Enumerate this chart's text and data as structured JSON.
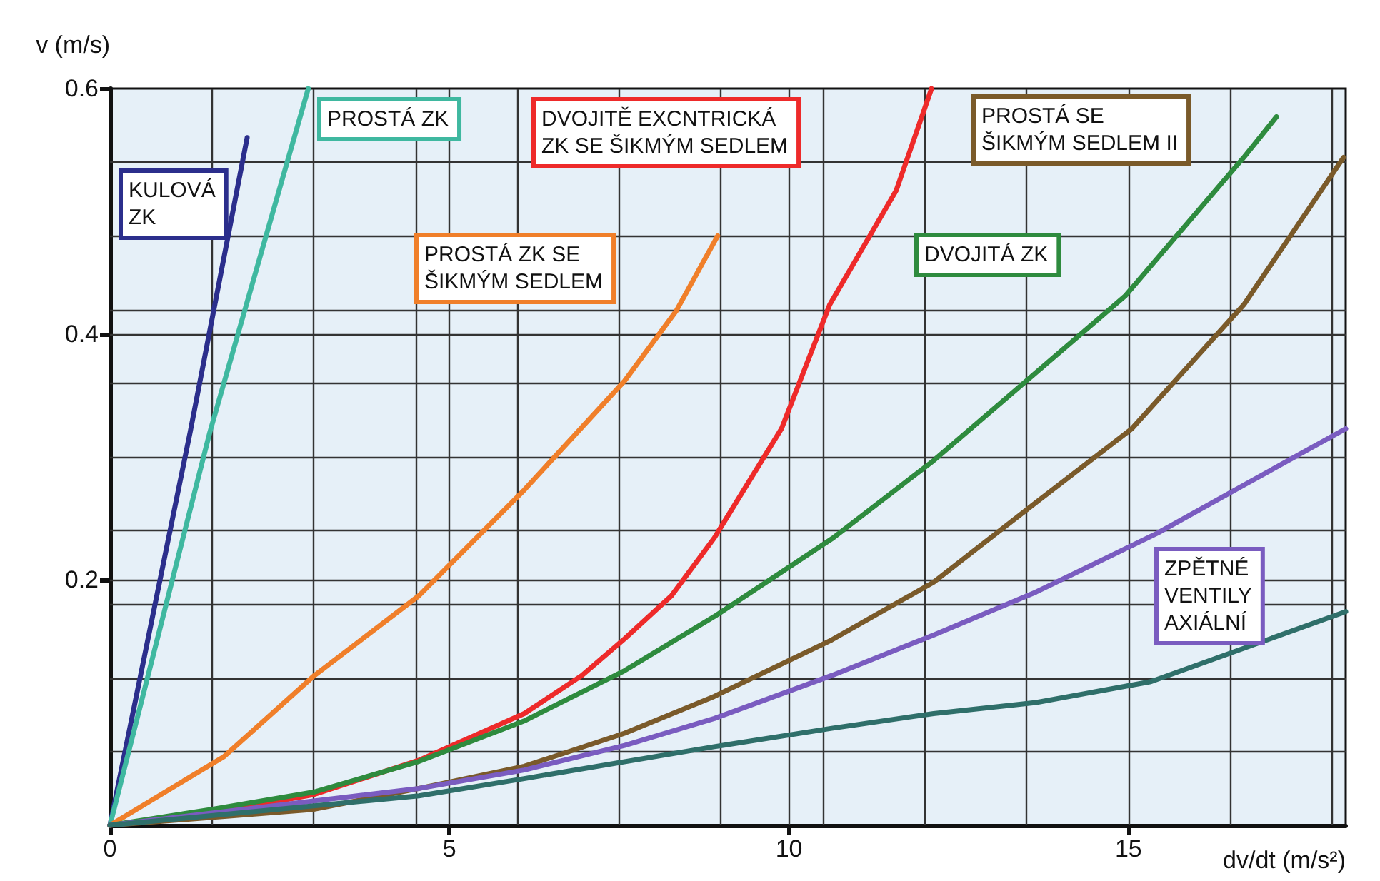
{
  "chart_data": {
    "type": "line",
    "xlabel": "dv/dt (m/s²)",
    "ylabel": "v (m/s)",
    "xlim": [
      0,
      18.2
    ],
    "xticks": [
      0,
      {
        "value": 1.5,
        "label": null
      },
      {
        "value": 3,
        "label": null
      },
      {
        "value": 4.5,
        "label": null
      },
      5,
      {
        "value": 6,
        "label": null
      },
      {
        "value": 7.5,
        "label": null
      },
      {
        "value": 9,
        "label": null
      },
      10,
      {
        "value": 10.5,
        "label": null
      },
      {
        "value": 12,
        "label": null
      },
      {
        "value": 13.5,
        "label": null
      },
      15,
      {
        "value": 16.5,
        "label": null
      },
      {
        "value": 18,
        "label": null
      }
    ],
    "ylim": [
      0,
      0.6
    ],
    "yticks": [
      {
        "value": 0.06,
        "label": null
      },
      {
        "value": 0.12,
        "label": null
      },
      {
        "value": 0.18,
        "label": null
      },
      0.2,
      {
        "value": 0.24,
        "label": null
      },
      {
        "value": 0.3,
        "label": null
      },
      {
        "value": 0.36,
        "label": null
      },
      0.4,
      {
        "value": 0.42,
        "label": null
      },
      {
        "value": 0.48,
        "label": null
      },
      {
        "value": 0.54,
        "label": null
      },
      0.6
    ],
    "grid": true,
    "series": [
      {
        "name": "KULOVÁ ZK",
        "color": "#2b2e8c",
        "x": [
          0,
          1.18,
          2.02
        ],
        "values": [
          0,
          0.32,
          0.56
        ]
      },
      {
        "name": "PROSTÁ ZK",
        "color": "#3fb8a0",
        "x": [
          0,
          1.47,
          2.92
        ],
        "values": [
          0,
          0.32,
          0.6
        ]
      },
      {
        "name": "PROSTÁ ZK SE ŠIKMÝM SEDLEM",
        "color": "#f07f2a",
        "x": [
          0,
          1.68,
          3.01,
          4.55,
          6.1,
          7.58,
          8.34,
          8.95
        ],
        "values": [
          0,
          0.056,
          0.122,
          0.187,
          0.273,
          0.362,
          0.419,
          0.48
        ]
      },
      {
        "name": "DVOJITĚ EXCNTRICKÁ ZK SE ŠIKMÝM SEDLEM",
        "color": "#ee2a2a",
        "x": [
          0,
          1.5,
          3,
          4.55,
          6.1,
          6.95,
          7.58,
          8.27,
          8.9,
          9.89,
          10.6,
          11.58,
          12.1
        ],
        "values": [
          0,
          0.01,
          0.025,
          0.053,
          0.091,
          0.122,
          0.152,
          0.187,
          0.234,
          0.323,
          0.424,
          0.517,
          0.6
        ]
      },
      {
        "name": "DVOJITÁ ZK",
        "color": "#2e8b3e",
        "x": [
          0,
          1.5,
          3,
          4.55,
          6.1,
          7.58,
          8.9,
          10.65,
          12.13,
          14.95,
          16.7,
          17.18
        ],
        "values": [
          0,
          0.013,
          0.027,
          0.052,
          0.085,
          0.126,
          0.17,
          0.234,
          0.297,
          0.431,
          0.544,
          0.577
        ]
      },
      {
        "name": "PROSTÁ SE ŠIKMÝM SEDLEM II",
        "color": "#7a5a2a",
        "x": [
          0,
          3,
          4.55,
          6.1,
          7.58,
          8.9,
          10.63,
          12.13,
          13.64,
          15.05,
          16.7,
          18.17
        ],
        "values": [
          0,
          0.013,
          0.03,
          0.048,
          0.075,
          0.105,
          0.151,
          0.198,
          0.263,
          0.323,
          0.424,
          0.544
        ]
      },
      {
        "name": "ZPĚTNÉ VENTILY AXIÁLNÍ",
        "color": "#7a5cc0",
        "x": [
          0,
          4.55,
          6.1,
          7.58,
          8.9,
          10.63,
          12.13,
          13.64,
          15.43,
          16.7,
          18.2
        ],
        "values": [
          0,
          0.03,
          0.045,
          0.065,
          0.087,
          0.122,
          0.155,
          0.19,
          0.238,
          0.277,
          0.323
        ]
      },
      {
        "color": "#2f6f6a",
        "x": [
          0,
          4.55,
          6.1,
          8.9,
          10.63,
          12.13,
          13.64,
          15.33,
          18.2
        ],
        "values": [
          0,
          0.024,
          0.038,
          0.064,
          0.079,
          0.091,
          0.1,
          0.117,
          0.174
        ]
      }
    ]
  }
}
